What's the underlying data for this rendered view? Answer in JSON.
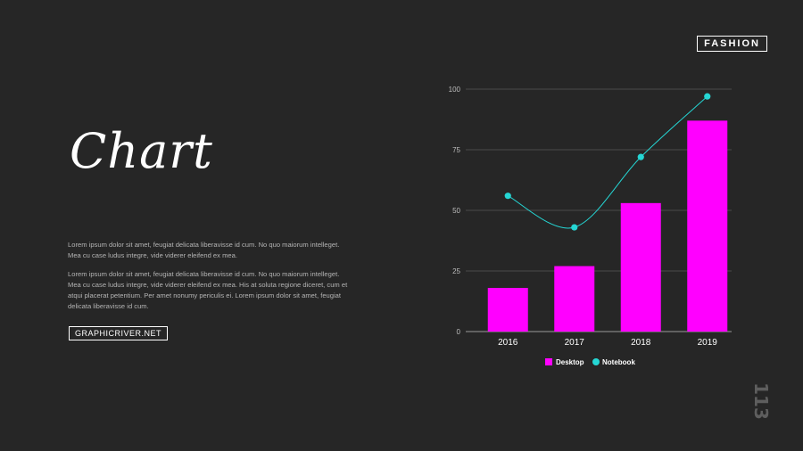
{
  "brand": "FASHION",
  "title": "Chart",
  "paragraphs": [
    "Lorem ipsum dolor sit amet, feugiat delicata liberavisse id cum. No quo maiorum intelleget. Mea cu case ludus integre, vide viderer eleifend ex mea.",
    "Lorem ipsum dolor sit amet, feugiat delicata liberavisse id cum. No quo maiorum intelleget. Mea cu case ludus integre, vide viderer eleifend ex mea. His at soluta regione diceret, cum et atqui placerat petentium. Per amet nonumy periculis ei. Lorem ipsum dolor sit amet, feugiat delicata liberavisse id cum."
  ],
  "button_label": "GRAPHICRIVER.NET",
  "page_number": "113",
  "colors": {
    "background": "#262626",
    "desktop": "#ff00ff",
    "notebook": "#25d6d4"
  },
  "chart_data": {
    "type": "bar",
    "categories": [
      "2016",
      "2017",
      "2018",
      "2019"
    ],
    "series": [
      {
        "name": "Desktop",
        "type": "bar",
        "values": [
          18,
          27,
          53,
          87
        ]
      },
      {
        "name": "Notebook",
        "type": "line",
        "smooth": true,
        "values": [
          56,
          43,
          72,
          97
        ]
      }
    ],
    "yticks": [
      0,
      25,
      50,
      75,
      100
    ],
    "ylim": [
      0,
      100
    ],
    "grid": true,
    "legend": "bottom"
  }
}
